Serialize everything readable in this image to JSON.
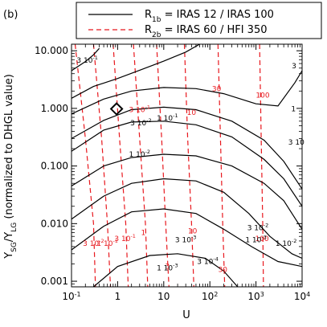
{
  "chart_data": {
    "type": "line",
    "panel_label": "(b)",
    "xlabel": "U",
    "ylabel": "Y_SG/Y_LG (normalized to DHGL value)",
    "ylabel_main": "Y",
    "ylabel_sub1": "SG",
    "ylabel_mid": "/Y",
    "ylabel_sub2": "LG",
    "ylabel_tail": " (normalized to DHGL value)",
    "x_scale": "log",
    "y_scale": "log",
    "xlim": [
      0.1,
      10000
    ],
    "ylim": [
      0.0008,
      13
    ],
    "x_ticks": [
      {
        "value": 0.1,
        "base": "10",
        "exp": "-1"
      },
      {
        "value": 1,
        "base": "1",
        "exp": ""
      },
      {
        "value": 10,
        "base": "10",
        "exp": ""
      },
      {
        "value": 100,
        "base": "10",
        "exp": "2"
      },
      {
        "value": 1000,
        "base": "10",
        "exp": "3"
      },
      {
        "value": 10000,
        "base": "10",
        "exp": "4"
      }
    ],
    "y_ticks": [
      {
        "value": 0.001,
        "label": "0.001"
      },
      {
        "value": 0.01,
        "label": "0.010"
      },
      {
        "value": 0.1,
        "label": "0.100"
      },
      {
        "value": 1,
        "label": "1.000"
      },
      {
        "value": 10,
        "label": "10.000"
      }
    ],
    "legend": {
      "placement": "top",
      "entries": [
        {
          "style": "solid",
          "color": "#000000",
          "name": "R",
          "sub": "1b",
          "text": " = IRAS 12 / IRAS 100"
        },
        {
          "style": "dashed",
          "color": "#e8181e",
          "name": "R",
          "sub": "2b",
          "text": " = IRAS 60 / HFI 350"
        }
      ]
    },
    "marker": {
      "shape": "diamond",
      "x": 0.95,
      "y": 0.98
    },
    "series_R1b": [
      {
        "points": [
          [
            0.1,
            4.5
          ],
          [
            0.2,
            6.5
          ],
          [
            0.3,
            8.5
          ],
          [
            0.4,
            11
          ]
        ],
        "labels": [
          {
            "text": "3 10",
            "exp": "-1",
            "x": 0.22,
            "y": 6.8
          }
        ]
      },
      {
        "points": [
          [
            0.1,
            1.5
          ],
          [
            0.3,
            2.4
          ],
          [
            1,
            3.3
          ],
          [
            3,
            4.6
          ],
          [
            10,
            6.6
          ],
          [
            30,
            9.5
          ],
          [
            60,
            13
          ]
        ]
      },
      {
        "points": [
          [
            0.1,
            0.8
          ],
          [
            0.5,
            1.45
          ],
          [
            2,
            2.0
          ],
          [
            10,
            2.3
          ],
          [
            50,
            2.2
          ],
          [
            200,
            1.8
          ],
          [
            1000,
            1.2
          ],
          [
            3000,
            1.1
          ],
          [
            7000,
            2.8
          ],
          [
            10000,
            4.5
          ]
        ],
        "labels": [
          {
            "text": "3",
            "exp": "",
            "x": 6700,
            "y": 5.5
          }
        ]
      },
      {
        "points": [
          [
            0.1,
            0.3
          ],
          [
            0.5,
            0.62
          ],
          [
            2,
            0.95
          ],
          [
            10,
            1.05
          ],
          [
            50,
            0.95
          ],
          [
            300,
            0.6
          ],
          [
            1500,
            0.28
          ],
          [
            4000,
            0.12
          ],
          [
            10000,
            0.04
          ]
        ],
        "labels": [
          {
            "text": "1 10",
            "exp": "-1",
            "x": 12,
            "y": 0.68
          },
          {
            "text": "1",
            "exp": "",
            "x": 6500,
            "y": 0.98
          }
        ]
      },
      {
        "points": [
          [
            0.1,
            0.18
          ],
          [
            0.5,
            0.42
          ],
          [
            2,
            0.58
          ],
          [
            10,
            0.6
          ],
          [
            50,
            0.52
          ],
          [
            300,
            0.32
          ],
          [
            1500,
            0.13
          ],
          [
            4000,
            0.06
          ],
          [
            10000,
            0.02
          ]
        ],
        "labels": [
          {
            "text": "3 10",
            "exp": "-2",
            "x": 3.2,
            "y": 0.56
          },
          {
            "text": "3 10",
            "exp": "",
            "x": 7500,
            "y": 0.26
          }
        ]
      },
      {
        "points": [
          [
            0.1,
            0.045
          ],
          [
            0.5,
            0.1
          ],
          [
            2,
            0.14
          ],
          [
            10,
            0.16
          ],
          [
            50,
            0.15
          ],
          [
            300,
            0.1
          ],
          [
            1500,
            0.05
          ],
          [
            4000,
            0.025
          ],
          [
            10000,
            0.008
          ]
        ],
        "labels": [
          {
            "text": "1 10",
            "exp": "-2",
            "x": 3.0,
            "y": 0.16
          }
        ]
      },
      {
        "points": [
          [
            0.1,
            0.012
          ],
          [
            0.5,
            0.03
          ],
          [
            2,
            0.05
          ],
          [
            10,
            0.06
          ],
          [
            50,
            0.055
          ],
          [
            200,
            0.035
          ],
          [
            700,
            0.015
          ],
          [
            2000,
            0.006
          ],
          [
            6000,
            0.003
          ],
          [
            10000,
            0.0025
          ]
        ]
      },
      {
        "points": [
          [
            0.1,
            0.0035
          ],
          [
            0.5,
            0.009
          ],
          [
            2,
            0.016
          ],
          [
            10,
            0.018
          ],
          [
            50,
            0.015
          ],
          [
            200,
            0.008
          ],
          [
            800,
            0.004
          ],
          [
            3000,
            0.0022
          ],
          [
            10000,
            0.0018
          ]
        ],
        "labels": [
          {
            "text": "3 10",
            "exp": "-3",
            "x": 30,
            "y": 0.0052
          },
          {
            "text": "1 10",
            "exp": "-3",
            "x": 1000,
            "y": 0.0052
          },
          {
            "text": "3 10",
            "exp": "-2",
            "x": 1100,
            "y": 0.0085
          },
          {
            "text": "1 10",
            "exp": "-2",
            "x": 4500,
            "y": 0.0045
          }
        ]
      },
      {
        "points": [
          [
            0.3,
            0.0008
          ],
          [
            1,
            0.0018
          ],
          [
            5,
            0.0028
          ],
          [
            20,
            0.003
          ],
          [
            80,
            0.0025
          ],
          [
            200,
            0.0015
          ],
          [
            400,
            0.0008
          ]
        ],
        "labels": [
          {
            "text": "1 10",
            "exp": "-3",
            "x": 12,
            "y": 0.0017
          },
          {
            "text": "3 10",
            "exp": "-4",
            "x": 90,
            "y": 0.0022
          }
        ]
      }
    ],
    "series_R2b": [
      {
        "points": [
          [
            0.12,
            13
          ],
          [
            0.2,
            0.3
          ],
          [
            0.3,
            0.01
          ],
          [
            0.33,
            0.0008
          ]
        ],
        "labels": [
          {
            "text": "3 10",
            "exp": "-2",
            "x": 0.3,
            "y": 0.0045
          }
        ]
      },
      {
        "points": [
          [
            0.3,
            13
          ],
          [
            0.45,
            0.3
          ],
          [
            0.6,
            0.01
          ],
          [
            0.7,
            0.0008
          ]
        ],
        "labels": [
          {
            "text": "1 10",
            "exp": "-1",
            "x": 0.6,
            "y": 0.0045
          }
        ]
      },
      {
        "points": [
          [
            0.8,
            13
          ],
          [
            1.1,
            0.3
          ],
          [
            1.5,
            0.01
          ],
          [
            1.7,
            0.0008
          ]
        ],
        "labels": [
          {
            "text": "3 10",
            "exp": "-1",
            "x": 1.45,
            "y": 0.0055
          },
          {
            "text": "3 10",
            "exp": "-1",
            "x": 3,
            "y": 0.95
          }
        ]
      },
      {
        "points": [
          [
            2.2,
            13
          ],
          [
            3,
            0.3
          ],
          [
            4,
            0.01
          ],
          [
            4.5,
            0.0008
          ]
        ],
        "labels": [
          {
            "text": "1",
            "exp": "",
            "x": 3.6,
            "y": 0.007
          }
        ]
      },
      {
        "points": [
          [
            7,
            13
          ],
          [
            9,
            0.3
          ],
          [
            11,
            0.01
          ],
          [
            13,
            0.0008
          ]
        ],
        "labels": [
          {
            "text": "3",
            "exp": "",
            "x": 12,
            "y": 0.0018
          }
        ]
      },
      {
        "points": [
          [
            28,
            13
          ],
          [
            33,
            0.3
          ],
          [
            40,
            0.01
          ],
          [
            45,
            0.0008
          ]
        ],
        "labels": [
          {
            "text": "10",
            "exp": "",
            "x": 40,
            "y": 0.85
          },
          {
            "text": "10",
            "exp": "",
            "x": 42,
            "y": 0.0075
          }
        ]
      },
      {
        "points": [
          [
            150,
            13
          ],
          [
            170,
            0.3
          ],
          [
            190,
            0.01
          ],
          [
            210,
            0.0008
          ]
        ],
        "labels": [
          {
            "text": "30",
            "exp": "",
            "x": 140,
            "y": 2.2
          },
          {
            "text": "30",
            "exp": "",
            "x": 190,
            "y": 0.0016
          }
        ]
      },
      {
        "points": [
          [
            1200,
            13
          ],
          [
            1300,
            0.3
          ],
          [
            1400,
            0.01
          ],
          [
            1450,
            0.0008
          ]
        ],
        "labels": [
          {
            "text": "100",
            "exp": "",
            "x": 1400,
            "y": 1.7
          },
          {
            "text": "100",
            "exp": "",
            "x": 1350,
            "y": 0.0055
          }
        ]
      }
    ]
  }
}
